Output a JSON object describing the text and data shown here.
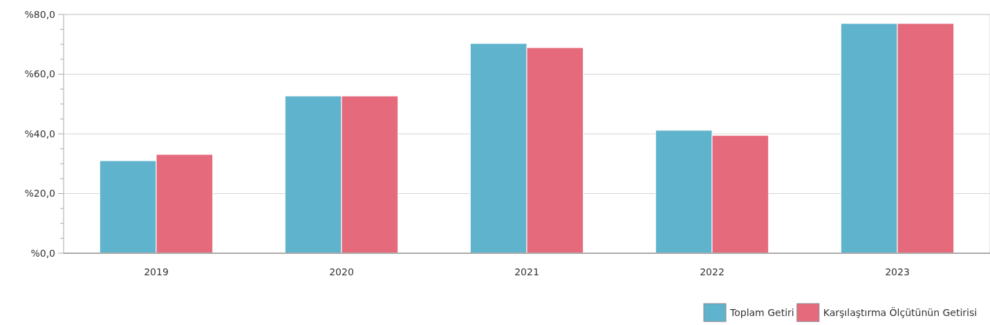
{
  "chart_data": {
    "type": "bar",
    "categories": [
      "2019",
      "2020",
      "2021",
      "2022",
      "2023"
    ],
    "series": [
      {
        "name": "Toplam Getiri",
        "color": "#60b3cc",
        "values": [
          31.0,
          52.7,
          70.3,
          41.2,
          77.0
        ]
      },
      {
        "name": "Karşılaştırma Ölçütünün Getirisi",
        "color": "#e56b7c",
        "values": [
          33.1,
          52.7,
          68.9,
          39.5,
          77.0
        ]
      }
    ],
    "ylim": [
      0,
      80
    ],
    "yticks": [
      {
        "value": 0,
        "label": "%0,0"
      },
      {
        "value": 5,
        "label": null
      },
      {
        "value": 10,
        "label": null
      },
      {
        "value": 15,
        "label": null
      },
      {
        "value": 20,
        "label": "%20,0"
      },
      {
        "value": 25,
        "label": null
      },
      {
        "value": 30,
        "label": null
      },
      {
        "value": 35,
        "label": null
      },
      {
        "value": 40,
        "label": "%40,0"
      },
      {
        "value": 45,
        "label": null
      },
      {
        "value": 50,
        "label": null
      },
      {
        "value": 55,
        "label": null
      },
      {
        "value": 60,
        "label": "%60,0"
      },
      {
        "value": 65,
        "label": null
      },
      {
        "value": 70,
        "label": null
      },
      {
        "value": 75,
        "label": null
      },
      {
        "value": 80,
        "label": "%80,0"
      }
    ],
    "grid": "y",
    "legend": "bottom right"
  }
}
